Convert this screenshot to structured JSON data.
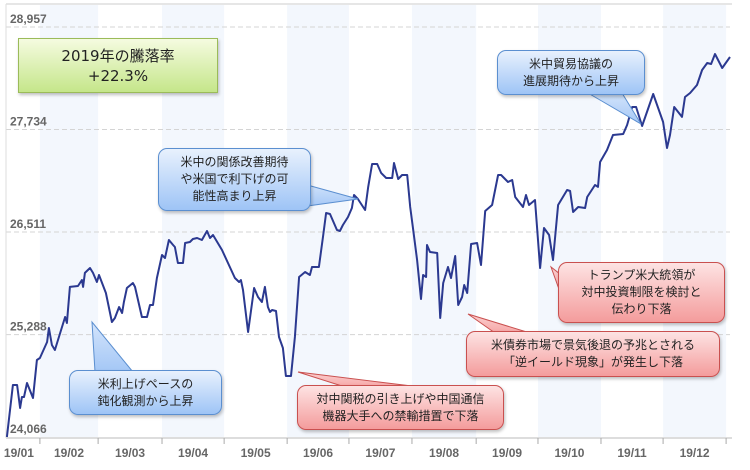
{
  "chart_data": {
    "type": "line",
    "title": "",
    "xlabel": "",
    "ylabel": "",
    "x_unit": "trading-day index",
    "ylim": [
      24066,
      28957
    ],
    "xlim": [
      0,
      241.3
    ],
    "yticks": [
      24066,
      25288,
      26511,
      27734,
      28957
    ],
    "ytick_labels": [
      "24,066",
      "25,288",
      "26,511",
      "27,734",
      "28,957"
    ],
    "month_boundaries": [
      11.3,
      30.7,
      52,
      72.7,
      93.7,
      114.3,
      135.3,
      156.7,
      177.3,
      198.3,
      219,
      240
    ],
    "month_labels": [
      "19/01",
      "19/02",
      "19/03",
      "19/04",
      "19/05",
      "19/06",
      "19/07",
      "19/08",
      "19/09",
      "19/10",
      "19/11",
      "19/12"
    ],
    "grid": true,
    "line_color": "#2b3990",
    "band_color": "#f3f7fd",
    "series": [
      {
        "name": "index",
        "points": [
          [
            0.3,
            24066
          ],
          [
            2.3,
            24686
          ],
          [
            3.7,
            24686
          ],
          [
            4.7,
            24412
          ],
          [
            5.3,
            24543
          ],
          [
            6.0,
            24543
          ],
          [
            7.0,
            24710
          ],
          [
            9.0,
            24531
          ],
          [
            10.3,
            24985
          ],
          [
            11.3,
            25008
          ],
          [
            13.7,
            25199
          ],
          [
            14.3,
            25366
          ],
          [
            15.3,
            25164
          ],
          [
            16.3,
            25104
          ],
          [
            19.7,
            25498
          ],
          [
            20.3,
            25426
          ],
          [
            21.3,
            25856
          ],
          [
            24.0,
            25867
          ],
          [
            25.3,
            25939
          ],
          [
            25.7,
            25856
          ],
          [
            26.3,
            26023
          ],
          [
            28.0,
            26082
          ],
          [
            29.0,
            26023
          ],
          [
            30.3,
            25915
          ],
          [
            31.0,
            25999
          ],
          [
            33.3,
            25784
          ],
          [
            35.3,
            25438
          ],
          [
            36.3,
            25486
          ],
          [
            37.7,
            25617
          ],
          [
            38.7,
            25545
          ],
          [
            39.3,
            25677
          ],
          [
            40.3,
            25844
          ],
          [
            42.3,
            25903
          ],
          [
            43.0,
            25856
          ],
          [
            45.3,
            25498
          ],
          [
            47.0,
            25498
          ],
          [
            48.0,
            25641
          ],
          [
            49.0,
            25641
          ],
          [
            50.3,
            25963
          ],
          [
            52.0,
            26237
          ],
          [
            53.0,
            26201
          ],
          [
            54.3,
            26416
          ],
          [
            55.7,
            26357
          ],
          [
            56.3,
            26333
          ],
          [
            57.3,
            26142
          ],
          [
            59.0,
            26142
          ],
          [
            59.7,
            26380
          ],
          [
            61.3,
            26392
          ],
          [
            62.3,
            26428
          ],
          [
            63.7,
            26440
          ],
          [
            65.3,
            26416
          ],
          [
            67.0,
            26524
          ],
          [
            68.0,
            26440
          ],
          [
            69.0,
            26476
          ],
          [
            72.0,
            26297
          ],
          [
            76.3,
            25963
          ],
          [
            77.7,
            25915
          ],
          [
            78.3,
            25939
          ],
          [
            79.0,
            25820
          ],
          [
            80.7,
            25319
          ],
          [
            82.7,
            25844
          ],
          [
            84.0,
            25736
          ],
          [
            85.3,
            25677
          ],
          [
            86.3,
            25856
          ],
          [
            87.3,
            25617
          ],
          [
            88.0,
            25557
          ],
          [
            88.7,
            25581
          ],
          [
            90.0,
            25569
          ],
          [
            91.0,
            25259
          ],
          [
            92.3,
            25128
          ],
          [
            93.3,
            24794
          ],
          [
            95.0,
            24794
          ],
          [
            96.3,
            25259
          ],
          [
            97.7,
            25975
          ],
          [
            99.7,
            26034
          ],
          [
            101.3,
            25999
          ],
          [
            102.0,
            26094
          ],
          [
            104.3,
            26094
          ],
          [
            105.7,
            26464
          ],
          [
            106.7,
            26738
          ],
          [
            108.0,
            26726
          ],
          [
            110.3,
            26536
          ],
          [
            111.3,
            26524
          ],
          [
            112.3,
            26595
          ],
          [
            114.0,
            26691
          ],
          [
            115.3,
            26798
          ],
          [
            116.0,
            26953
          ],
          [
            117.3,
            26905
          ],
          [
            119.7,
            26774
          ],
          [
            120.7,
            27049
          ],
          [
            122.0,
            27323
          ],
          [
            123.7,
            27323
          ],
          [
            125.0,
            27216
          ],
          [
            126.7,
            27156
          ],
          [
            128.7,
            27156
          ],
          [
            129.3,
            27335
          ],
          [
            130.7,
            27144
          ],
          [
            132.0,
            27192
          ],
          [
            133.7,
            27192
          ],
          [
            134.7,
            26810
          ],
          [
            135.7,
            26536
          ],
          [
            137.0,
            26178
          ],
          [
            138.3,
            25712
          ],
          [
            139.0,
            25999
          ],
          [
            140.0,
            25975
          ],
          [
            140.3,
            26357
          ],
          [
            141.3,
            26273
          ],
          [
            143.7,
            26261
          ],
          [
            144.7,
            25486
          ],
          [
            145.7,
            25903
          ],
          [
            147.3,
            26094
          ],
          [
            148.3,
            25963
          ],
          [
            149.7,
            26225
          ],
          [
            150.7,
            25641
          ],
          [
            152.0,
            25736
          ],
          [
            152.7,
            25879
          ],
          [
            153.7,
            25784
          ],
          [
            155.0,
            26368
          ],
          [
            157.0,
            26380
          ],
          [
            158.3,
            26118
          ],
          [
            159.7,
            26762
          ],
          [
            162.0,
            26834
          ],
          [
            164.0,
            27192
          ],
          [
            165.0,
            27192
          ],
          [
            167.3,
            27108
          ],
          [
            168.7,
            27132
          ],
          [
            169.7,
            26929
          ],
          [
            172.3,
            26810
          ],
          [
            173.3,
            26953
          ],
          [
            174.3,
            26834
          ],
          [
            176.3,
            26893
          ],
          [
            178.0,
            26082
          ],
          [
            179.3,
            26559
          ],
          [
            181.0,
            26476
          ],
          [
            182.3,
            26178
          ],
          [
            184.0,
            26834
          ],
          [
            187.0,
            27013
          ],
          [
            188.0,
            27001
          ],
          [
            189.0,
            26750
          ],
          [
            190.7,
            26810
          ],
          [
            193.0,
            26798
          ],
          [
            193.7,
            26929
          ],
          [
            196.3,
            27072
          ],
          [
            197.3,
            27049
          ],
          [
            198.0,
            27347
          ],
          [
            200.3,
            27490
          ],
          [
            202.3,
            27669
          ],
          [
            205.7,
            27681
          ],
          [
            207.0,
            27788
          ],
          [
            208.7,
            28003
          ],
          [
            210.0,
            28003
          ],
          [
            212.0,
            27776
          ],
          [
            215.7,
            28158
          ],
          [
            219.0,
            27824
          ],
          [
            220.3,
            27514
          ],
          [
            221.3,
            27669
          ],
          [
            222.7,
            28003
          ],
          [
            225.3,
            27884
          ],
          [
            226.3,
            28122
          ],
          [
            228.0,
            28170
          ],
          [
            230.3,
            28265
          ],
          [
            232.0,
            28444
          ],
          [
            233.7,
            28528
          ],
          [
            235.0,
            28516
          ],
          [
            236.3,
            28635
          ],
          [
            238.7,
            28468
          ],
          [
            241.3,
            28599
          ]
        ]
      }
    ],
    "annotations": [
      {
        "lines": [
          "2019年の騰落率",
          "+22.3%"
        ],
        "style": "green"
      },
      {
        "lines": [
          "米中の関係改善期待",
          "や米国で利下げの可",
          "能性高まり上昇"
        ],
        "style": "blue"
      },
      {
        "lines": [
          "米中貿易協議の",
          "進展期待から上昇"
        ],
        "style": "blue"
      },
      {
        "lines": [
          "米利上げペースの",
          "鈍化観測から上昇"
        ],
        "style": "blue"
      },
      {
        "lines": [
          "対中関税の引き上げや中国通信",
          "機器大手への禁輸措置で下落"
        ],
        "style": "red"
      },
      {
        "lines": [
          "トランプ米大統領が",
          "対中投資制限を検討と",
          "伝わり下落"
        ],
        "style": "red"
      },
      {
        "lines": [
          "米債券市場で景気後退の予兆とされる",
          "「逆イールド現象」が発生し下落"
        ],
        "style": "red"
      }
    ]
  }
}
